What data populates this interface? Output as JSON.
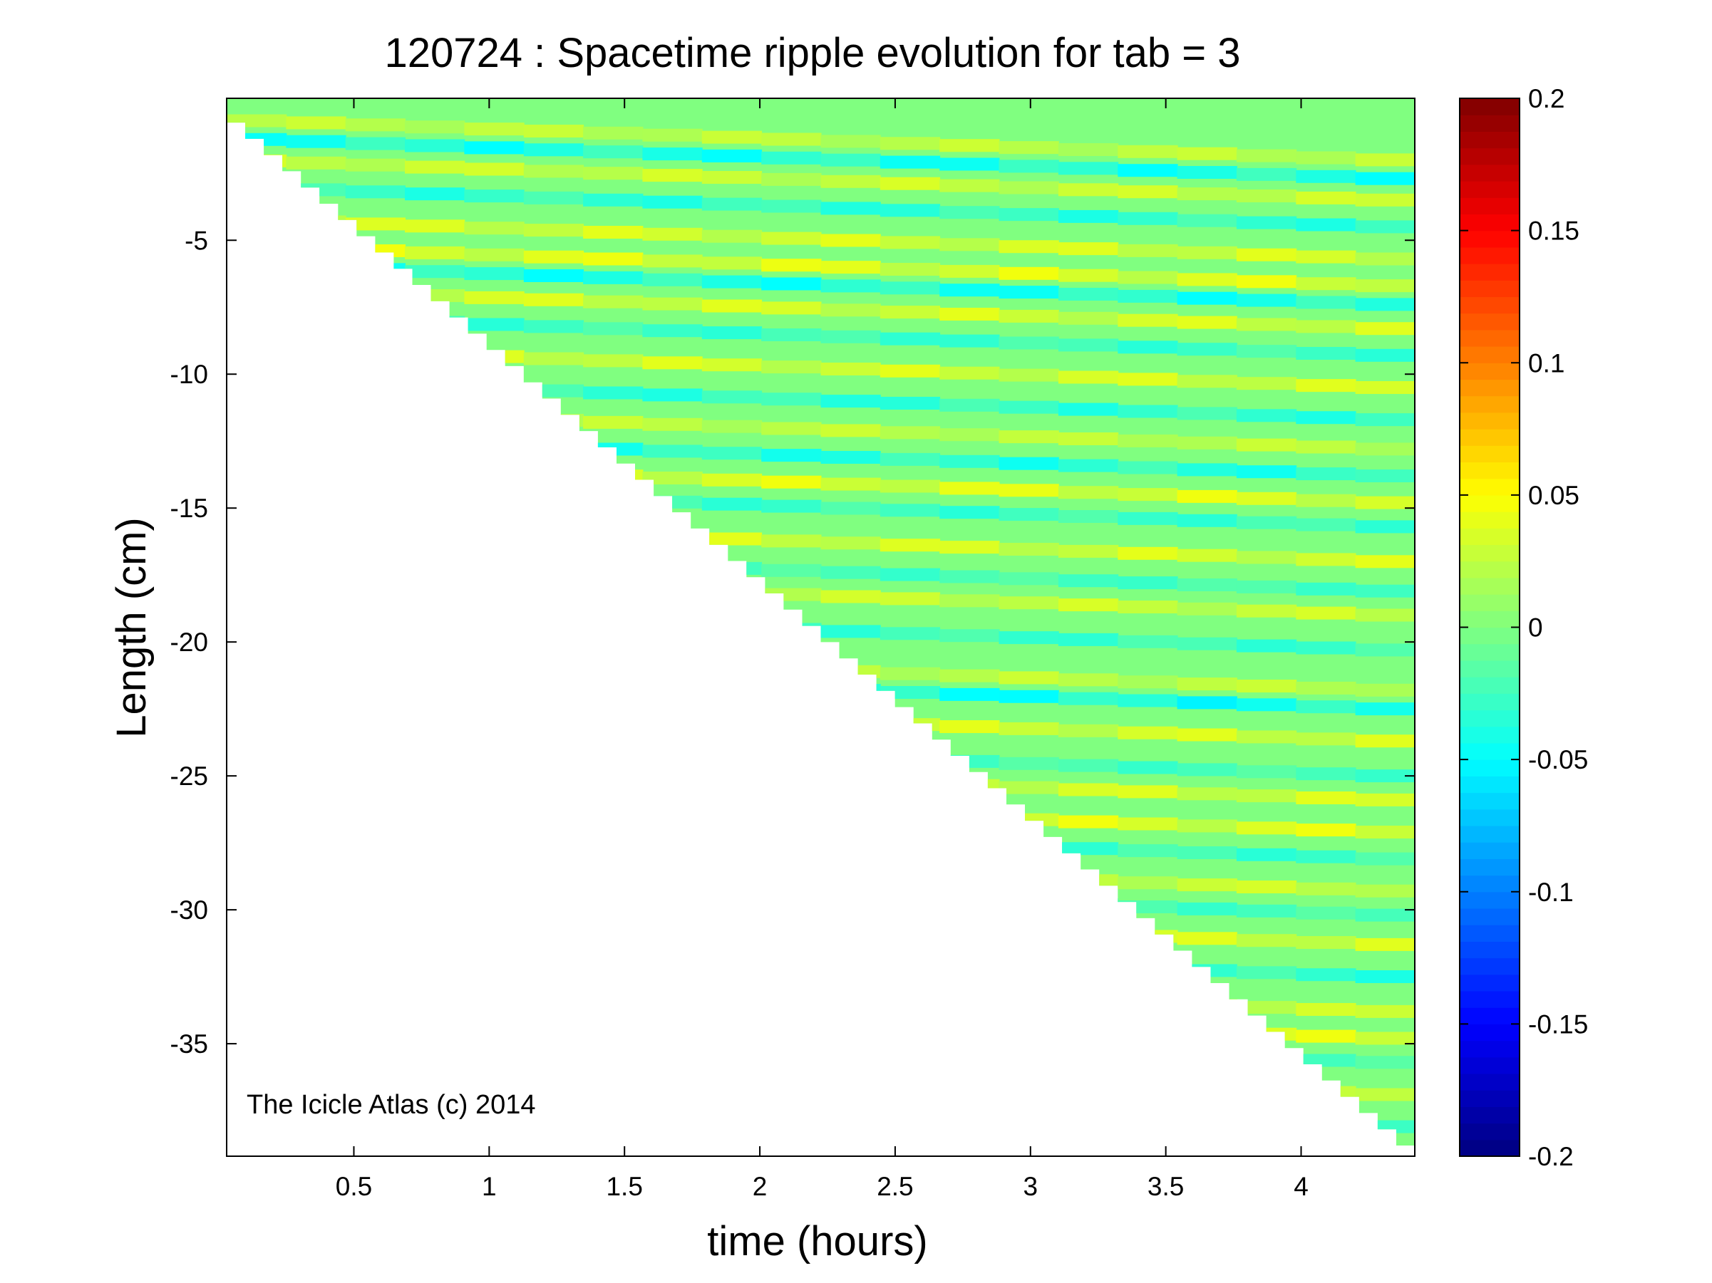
{
  "chart_data": {
    "type": "heatmap",
    "title": "120724 : Spacetime ripple evolution for tab = 3",
    "xlabel": "time (hours)",
    "ylabel": "Length (cm)",
    "xlim": [
      0.03,
      4.42
    ],
    "ylim": [
      -39.2,
      0.3
    ],
    "xticks": [
      0.5,
      1,
      1.5,
      2,
      2.5,
      3,
      3.5,
      4
    ],
    "xtick_labels": [
      "0.5",
      "1",
      "1.5",
      "2",
      "2.5",
      "3",
      "3.5",
      "4"
    ],
    "yticks": [
      -35,
      -30,
      -25,
      -20,
      -15,
      -10,
      -5
    ],
    "ytick_labels": [
      "-35",
      "-30",
      "-25",
      "-20",
      "-15",
      "-10",
      "-5"
    ],
    "colorbar": {
      "colormap": "jet",
      "clim": [
        -0.2,
        0.2
      ],
      "ticks": [
        -0.2,
        -0.15,
        -0.1,
        -0.05,
        0,
        0.05,
        0.1,
        0.15,
        0.2
      ],
      "tick_labels": [
        "-0.2",
        "-0.15",
        "-0.1",
        "-0.05",
        "0",
        "0.05",
        "0.1",
        "0.15",
        "0.2"
      ],
      "levels": 64
    },
    "data_front": {
      "description_free": true,
      "t": [
        0.03,
        4.42
      ],
      "length": [
        0.0,
        -38.8
      ]
    },
    "ripple_bands": {
      "length": [
        -0.5,
        -1.2,
        -2.0,
        -3.0,
        -4.2,
        -5.2,
        -5.9,
        -6.8,
        -7.8,
        -9.0,
        -10.2,
        -11.3,
        -12.3,
        -13.3,
        -14.2,
        -15.5,
        -16.6,
        -17.5,
        -18.8,
        -20.3,
        -21.0,
        -22.2,
        -23.5,
        -24.4,
        -25.6,
        -26.6,
        -27.8,
        -28.7,
        -29.8,
        -31.0,
        -32.3,
        -33.3,
        -34.2,
        -35.4,
        -36.6,
        -37.6
      ],
      "value": [
        0.03,
        -0.05,
        0.035,
        -0.04,
        0.04,
        0.045,
        -0.05,
        0.04,
        -0.035,
        0.04,
        -0.04,
        0.03,
        -0.045,
        0.045,
        -0.035,
        0.04,
        -0.03,
        0.035,
        -0.035,
        0.03,
        -0.055,
        0.04,
        -0.03,
        0.04,
        0.045,
        -0.035,
        0.035,
        -0.03,
        0.04,
        -0.04,
        0.035,
        0.045,
        -0.03,
        0.045,
        -0.035,
        0.04
      ],
      "drift_per_hour": -0.35
    },
    "annotations": [
      "The Icicle Atlas (c) 2014"
    ]
  }
}
